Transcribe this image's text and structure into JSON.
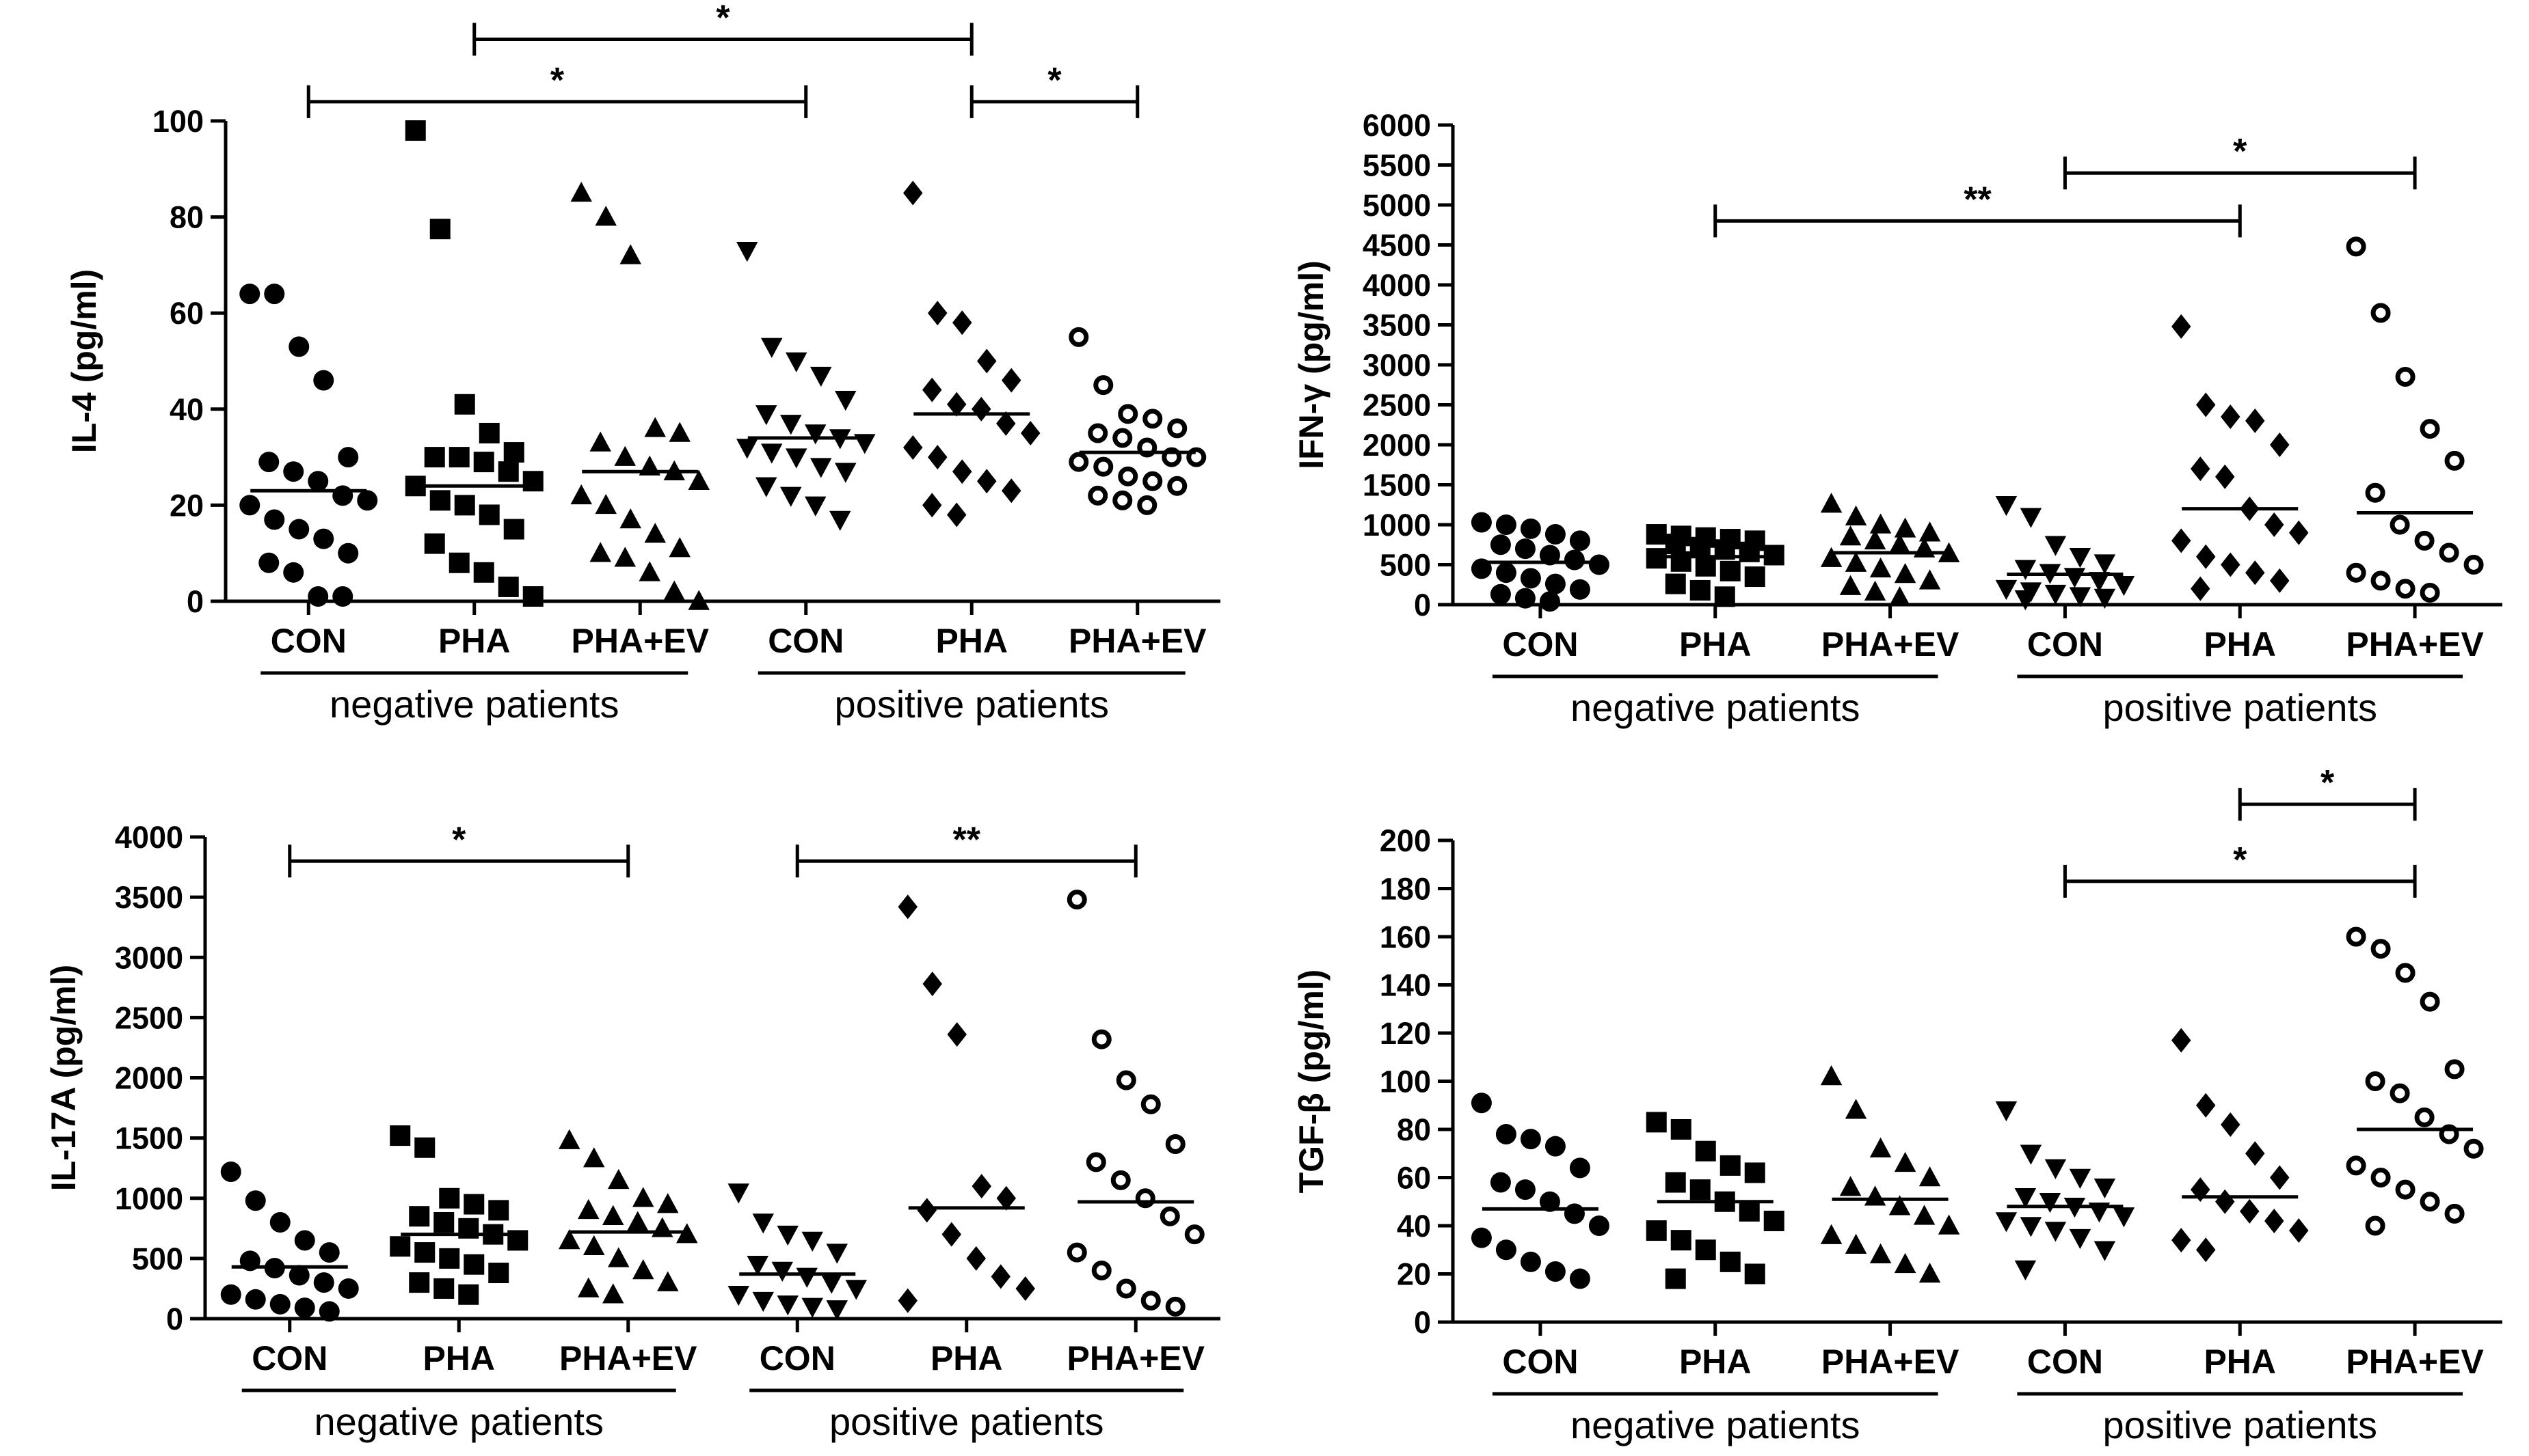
{
  "chart_data": [
    {
      "type": "scatter",
      "ylabel": "IL-4 (pg/ml)",
      "ylim": [
        0,
        100
      ],
      "yticks": [
        0,
        20,
        40,
        60,
        80,
        100
      ],
      "groups": [
        "negative patients",
        "positive patients"
      ],
      "categories": [
        "CON",
        "PHA",
        "PHA+EV",
        "CON",
        "PHA",
        "PHA+EV"
      ],
      "markers": [
        "circle",
        "square",
        "triangle-up",
        "triangle-down",
        "diamond",
        "circle-open"
      ],
      "means": [
        23,
        24,
        27,
        34,
        39,
        31
      ],
      "points": [
        [
          64,
          64,
          53,
          46,
          30,
          29,
          27,
          25,
          22,
          21,
          20,
          17,
          15,
          13,
          10,
          8,
          6,
          1,
          1
        ],
        [
          98,
          77.5,
          41,
          35,
          31,
          30,
          30,
          29,
          27,
          25,
          24,
          21,
          20,
          18,
          15,
          12,
          8,
          6,
          3,
          1
        ],
        [
          85,
          80,
          72,
          36,
          35,
          33,
          30,
          28,
          27,
          25,
          22,
          20,
          17,
          14,
          11,
          10,
          9,
          6,
          2,
          0
        ],
        [
          73,
          53,
          50,
          47,
          42,
          39,
          37,
          35,
          34,
          33,
          32,
          31,
          30,
          28,
          27,
          24,
          22,
          20,
          17
        ],
        [
          85,
          60,
          58,
          50,
          46,
          44,
          41,
          40,
          37,
          35,
          32,
          30,
          27,
          25,
          23,
          20,
          18
        ],
        [
          55,
          45,
          39,
          38,
          36,
          35,
          34,
          32,
          30,
          30,
          29,
          28,
          26,
          25,
          24,
          22,
          21,
          20
        ]
      ],
      "brackets": [
        {
          "from": 0,
          "to": 3,
          "y": 104,
          "label": "*"
        },
        {
          "from": 1,
          "to": 4,
          "y": 117,
          "label": "*"
        },
        {
          "from": 4,
          "to": 5,
          "y": 104,
          "label": "*"
        }
      ]
    },
    {
      "type": "scatter",
      "ylabel": "IFN-γ (pg/ml)",
      "ylim": [
        0,
        6000
      ],
      "yticks": [
        0,
        500,
        1000,
        1500,
        2000,
        2500,
        3000,
        3500,
        4000,
        4500,
        5000,
        5500,
        6000
      ],
      "groups": [
        "negative patients",
        "positive patients"
      ],
      "categories": [
        "CON",
        "PHA",
        "PHA+EV",
        "CON",
        "PHA",
        "PHA+EV"
      ],
      "markers": [
        "circle",
        "square",
        "triangle-up",
        "triangle-down",
        "diamond",
        "circle-open"
      ],
      "means": [
        530,
        600,
        650,
        380,
        1200,
        1150
      ],
      "points": [
        [
          1030,
          1000,
          950,
          880,
          800,
          750,
          700,
          620,
          560,
          500,
          450,
          400,
          330,
          260,
          190,
          130,
          80,
          40
        ],
        [
          880,
          860,
          840,
          820,
          800,
          760,
          720,
          690,
          660,
          620,
          580,
          540,
          480,
          420,
          350,
          260,
          180,
          100
        ],
        [
          1260,
          1100,
          1000,
          950,
          900,
          850,
          800,
          750,
          700,
          640,
          580,
          520,
          450,
          380,
          300,
          230,
          160,
          90
        ],
        [
          1250,
          1100,
          750,
          600,
          520,
          450,
          400,
          350,
          300,
          250,
          200,
          170,
          140,
          110,
          90,
          70
        ],
        [
          3480,
          2500,
          2350,
          2300,
          2000,
          1700,
          1600,
          1200,
          1000,
          900,
          800,
          600,
          500,
          400,
          300,
          200
        ],
        [
          4480,
          3650,
          2850,
          2200,
          1800,
          1400,
          1000,
          800,
          650,
          500,
          400,
          300,
          200,
          150
        ]
      ],
      "brackets": [
        {
          "from": 1,
          "to": 4,
          "y": 4800,
          "label": "**"
        },
        {
          "from": 3,
          "to": 5,
          "y": 5400,
          "label": "*"
        }
      ]
    },
    {
      "type": "scatter",
      "ylabel": "IL-17A (pg/ml)",
      "ylim": [
        0,
        4000
      ],
      "yticks": [
        0,
        500,
        1000,
        1500,
        2000,
        2500,
        3000,
        3500,
        4000
      ],
      "groups": [
        "negative patients",
        "positive patients"
      ],
      "categories": [
        "CON",
        "PHA",
        "PHA+EV",
        "CON",
        "PHA",
        "PHA+EV"
      ],
      "markers": [
        "circle",
        "square",
        "triangle-up",
        "triangle-down",
        "diamond",
        "circle-open"
      ],
      "means": [
        430,
        700,
        720,
        370,
        920,
        970
      ],
      "points": [
        [
          1220,
          980,
          800,
          650,
          550,
          480,
          420,
          360,
          300,
          250,
          200,
          160,
          120,
          90,
          60
        ],
        [
          1520,
          1420,
          1000,
          950,
          900,
          850,
          800,
          750,
          700,
          650,
          600,
          550,
          500,
          450,
          380,
          300,
          250,
          200
        ],
        [
          1480,
          1330,
          1150,
          1000,
          950,
          900,
          850,
          800,
          750,
          700,
          650,
          600,
          500,
          400,
          300,
          250,
          200
        ],
        [
          1050,
          800,
          700,
          650,
          550,
          450,
          400,
          350,
          300,
          250,
          200,
          150,
          120,
          100,
          80
        ],
        [
          3420,
          2780,
          2360,
          1100,
          1000,
          900,
          700,
          500,
          350,
          250,
          150
        ],
        [
          3480,
          2320,
          1980,
          1780,
          1450,
          1300,
          1150,
          1000,
          850,
          700,
          550,
          400,
          250,
          150,
          100
        ]
      ],
      "brackets": [
        {
          "from": 0,
          "to": 2,
          "y": 3800,
          "label": "*"
        },
        {
          "from": 3,
          "to": 5,
          "y": 3800,
          "label": "**"
        }
      ]
    },
    {
      "type": "scatter",
      "ylabel": "TGF-β (pg/ml)",
      "ylim": [
        0,
        200
      ],
      "yticks": [
        0,
        20,
        40,
        60,
        80,
        100,
        120,
        140,
        160,
        180,
        200
      ],
      "groups": [
        "negative patients",
        "positive patients"
      ],
      "categories": [
        "CON",
        "PHA",
        "PHA+EV",
        "CON",
        "PHA",
        "PHA+EV"
      ],
      "markers": [
        "circle",
        "square",
        "triangle-up",
        "triangle-down",
        "diamond",
        "circle-open"
      ],
      "means": [
        47,
        50,
        51,
        48,
        52,
        80
      ],
      "points": [
        [
          91,
          78,
          76,
          73,
          64,
          58,
          55,
          50,
          45,
          40,
          35,
          30,
          25,
          21,
          18
        ],
        [
          83,
          80,
          71,
          65,
          62,
          58,
          55,
          50,
          46,
          42,
          38,
          34,
          30,
          25,
          20,
          18
        ],
        [
          102,
          88,
          72,
          66,
          60,
          56,
          52,
          48,
          44,
          40,
          36,
          32,
          28,
          24,
          20
        ],
        [
          88,
          70,
          64,
          60,
          56,
          52,
          50,
          48,
          46,
          44,
          42,
          40,
          38,
          35,
          30,
          22
        ],
        [
          117,
          90,
          82,
          70,
          60,
          55,
          50,
          46,
          42,
          38,
          34,
          30
        ],
        [
          160,
          155,
          145,
          133,
          105,
          100,
          95,
          85,
          78,
          72,
          65,
          60,
          55,
          50,
          45,
          40
        ]
      ],
      "brackets": [
        {
          "from": 3,
          "to": 5,
          "y": 183,
          "label": "*"
        },
        {
          "from": 4,
          "to": 5,
          "y": 215,
          "label": "*"
        }
      ]
    }
  ]
}
